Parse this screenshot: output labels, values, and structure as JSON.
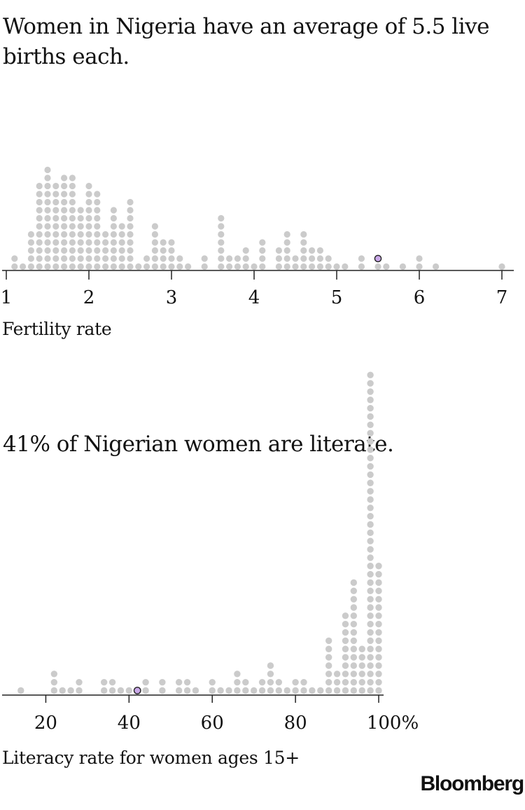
{
  "headline_1": "Women in Nigeria have an average of 5.5 live births each.",
  "headline_2": "41% of Nigerian women are literate.",
  "brand": "Bloomberg",
  "colors": {
    "dot": "#cbcbcb",
    "highlight": "#c9a8e8",
    "axis": "#222222",
    "text": "#111111"
  },
  "chart_data": [
    {
      "type": "scatter",
      "subtype": "dot-histogram",
      "title": "Women in Nigeria have an average of 5.5 live births each.",
      "xlabel": "Fertility rate",
      "xlim": [
        1,
        7
      ],
      "ticks": [
        1,
        2,
        3,
        4,
        5,
        6,
        7
      ],
      "tick_labels": [
        "1",
        "2",
        "3",
        "4",
        "5",
        "6",
        "7"
      ],
      "bins": [
        [
          1.1,
          2
        ],
        [
          1.2,
          1
        ],
        [
          1.3,
          5
        ],
        [
          1.4,
          11
        ],
        [
          1.5,
          13
        ],
        [
          1.6,
          11
        ],
        [
          1.7,
          12
        ],
        [
          1.8,
          12
        ],
        [
          1.9,
          8
        ],
        [
          2.0,
          11
        ],
        [
          2.1,
          10
        ],
        [
          2.2,
          5
        ],
        [
          2.3,
          8
        ],
        [
          2.4,
          6
        ],
        [
          2.5,
          9
        ],
        [
          2.6,
          1
        ],
        [
          2.7,
          2
        ],
        [
          2.8,
          6
        ],
        [
          2.9,
          4
        ],
        [
          3.0,
          4
        ],
        [
          3.1,
          2
        ],
        [
          3.2,
          1
        ],
        [
          3.4,
          2
        ],
        [
          3.6,
          7
        ],
        [
          3.7,
          2
        ],
        [
          3.8,
          2
        ],
        [
          3.9,
          3
        ],
        [
          4.0,
          1
        ],
        [
          4.1,
          4
        ],
        [
          4.3,
          3
        ],
        [
          4.4,
          5
        ],
        [
          4.5,
          2
        ],
        [
          4.6,
          5
        ],
        [
          4.7,
          3
        ],
        [
          4.8,
          3
        ],
        [
          4.9,
          2
        ],
        [
          5.0,
          1
        ],
        [
          5.1,
          1
        ],
        [
          5.3,
          2
        ],
        [
          5.5,
          2
        ],
        [
          5.6,
          1
        ],
        [
          5.8,
          1
        ],
        [
          6.0,
          2
        ],
        [
          6.2,
          1
        ],
        [
          7.0,
          1
        ]
      ],
      "highlight": {
        "label": "Nigeria",
        "value": 5.5
      }
    },
    {
      "type": "scatter",
      "subtype": "dot-histogram",
      "title": "41% of Nigerian women are literate.",
      "xlabel": "Literacy rate for women ages 15+",
      "xlim": [
        10,
        100
      ],
      "ticks": [
        20,
        40,
        60,
        80,
        100
      ],
      "tick_labels": [
        "20",
        "40",
        "60",
        "80",
        "100%"
      ],
      "bins": [
        [
          14,
          1
        ],
        [
          22,
          3
        ],
        [
          24,
          1
        ],
        [
          26,
          1
        ],
        [
          28,
          2
        ],
        [
          34,
          2
        ],
        [
          36,
          2
        ],
        [
          38,
          1
        ],
        [
          40,
          1
        ],
        [
          42,
          1
        ],
        [
          44,
          2
        ],
        [
          48,
          2
        ],
        [
          52,
          2
        ],
        [
          54,
          2
        ],
        [
          56,
          1
        ],
        [
          60,
          2
        ],
        [
          62,
          1
        ],
        [
          64,
          1
        ],
        [
          66,
          3
        ],
        [
          68,
          2
        ],
        [
          70,
          1
        ],
        [
          72,
          2
        ],
        [
          74,
          4
        ],
        [
          76,
          2
        ],
        [
          78,
          1
        ],
        [
          80,
          2
        ],
        [
          82,
          2
        ],
        [
          84,
          1
        ],
        [
          86,
          1
        ],
        [
          88,
          7
        ],
        [
          90,
          3
        ],
        [
          92,
          10
        ],
        [
          94,
          14
        ],
        [
          96,
          6
        ],
        [
          98,
          39
        ],
        [
          100,
          16
        ]
      ],
      "highlight": {
        "label": "Nigeria",
        "value": 42
      }
    }
  ]
}
